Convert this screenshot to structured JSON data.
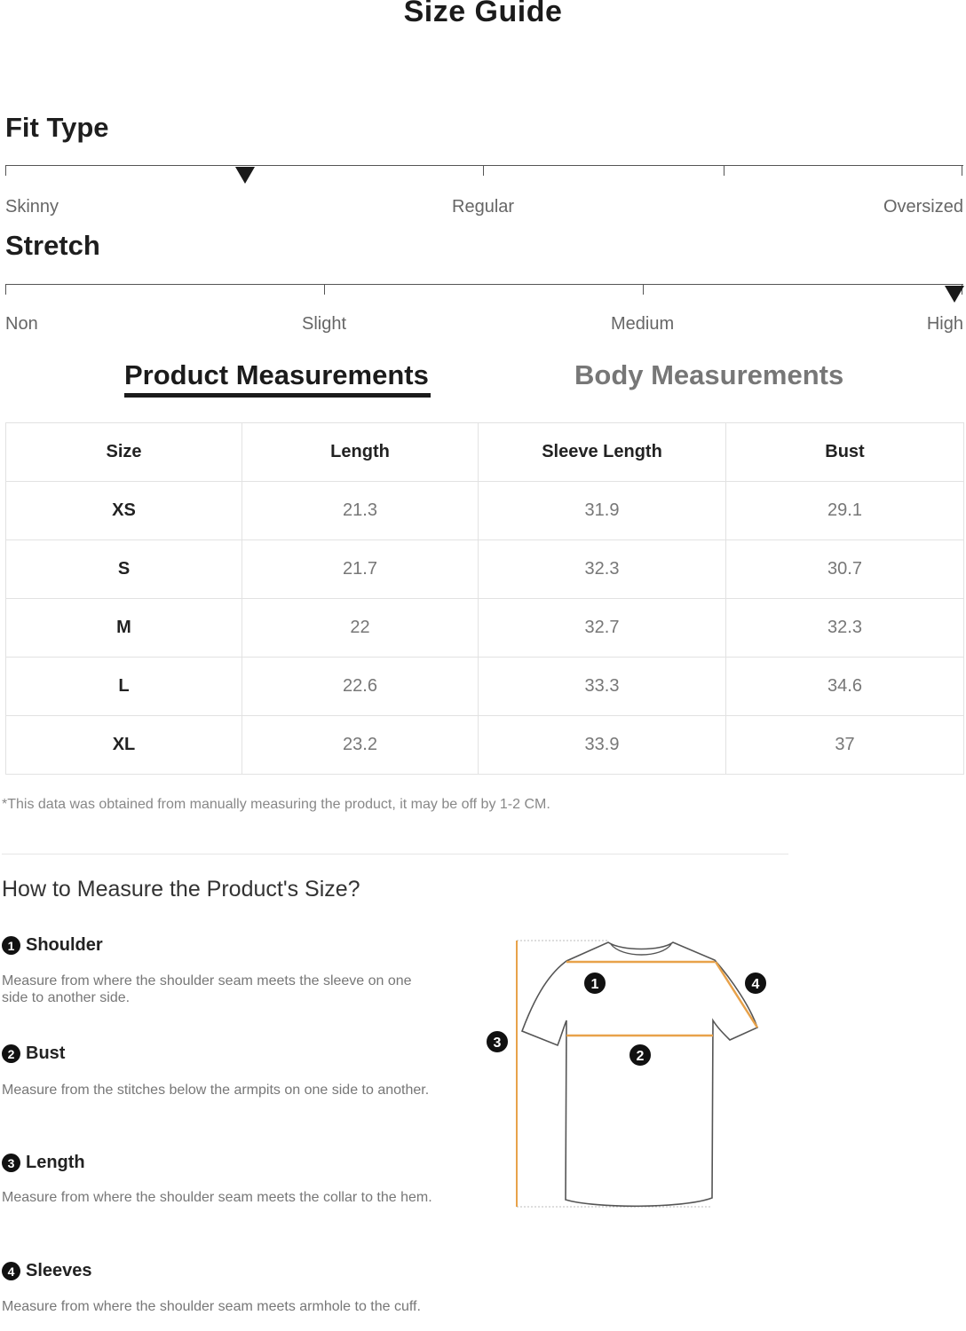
{
  "page_title": "Size Guide",
  "fit_type": {
    "title": "Fit Type",
    "labels": [
      "Skinny",
      "Regular",
      "Oversized"
    ],
    "level": 0.25
  },
  "stretch": {
    "title": "Stretch",
    "labels": [
      "Non",
      "Slight",
      "Medium",
      "High"
    ],
    "level": 1.0
  },
  "tabs": {
    "product": "Product Measurements",
    "body": "Body Measurements"
  },
  "table": {
    "headers": [
      "Size",
      "Length",
      "Sleeve Length",
      "Bust"
    ],
    "rows": [
      [
        "XS",
        "21.3",
        "31.9",
        "29.1"
      ],
      [
        "S",
        "21.7",
        "32.3",
        "30.7"
      ],
      [
        "M",
        "22",
        "32.7",
        "32.3"
      ],
      [
        "L",
        "22.6",
        "33.3",
        "34.6"
      ],
      [
        "XL",
        "23.2",
        "33.9",
        "37"
      ]
    ]
  },
  "note": "*This data was obtained from manually measuring the product, it may be off by 1-2 CM.",
  "how_to": {
    "title": "How to Measure the Product's Size?",
    "steps": [
      {
        "num": "1",
        "title": "Shoulder",
        "desc": "Measure from where the shoulder seam meets the sleeve on one side to another side."
      },
      {
        "num": "2",
        "title": "Bust",
        "desc": "Measure from the stitches below the armpits on one side to another."
      },
      {
        "num": "3",
        "title": "Length",
        "desc": "Measure from where the shoulder seam meets the collar to the hem."
      },
      {
        "num": "4",
        "title": "Sleeves",
        "desc": "Measure from where the shoulder seam meets armhole to the cuff."
      }
    ]
  },
  "diagram_labels": [
    "1",
    "2",
    "3",
    "4"
  ],
  "colors": {
    "measure_line": "#e8a24a",
    "marker": "#1a1a1a"
  }
}
